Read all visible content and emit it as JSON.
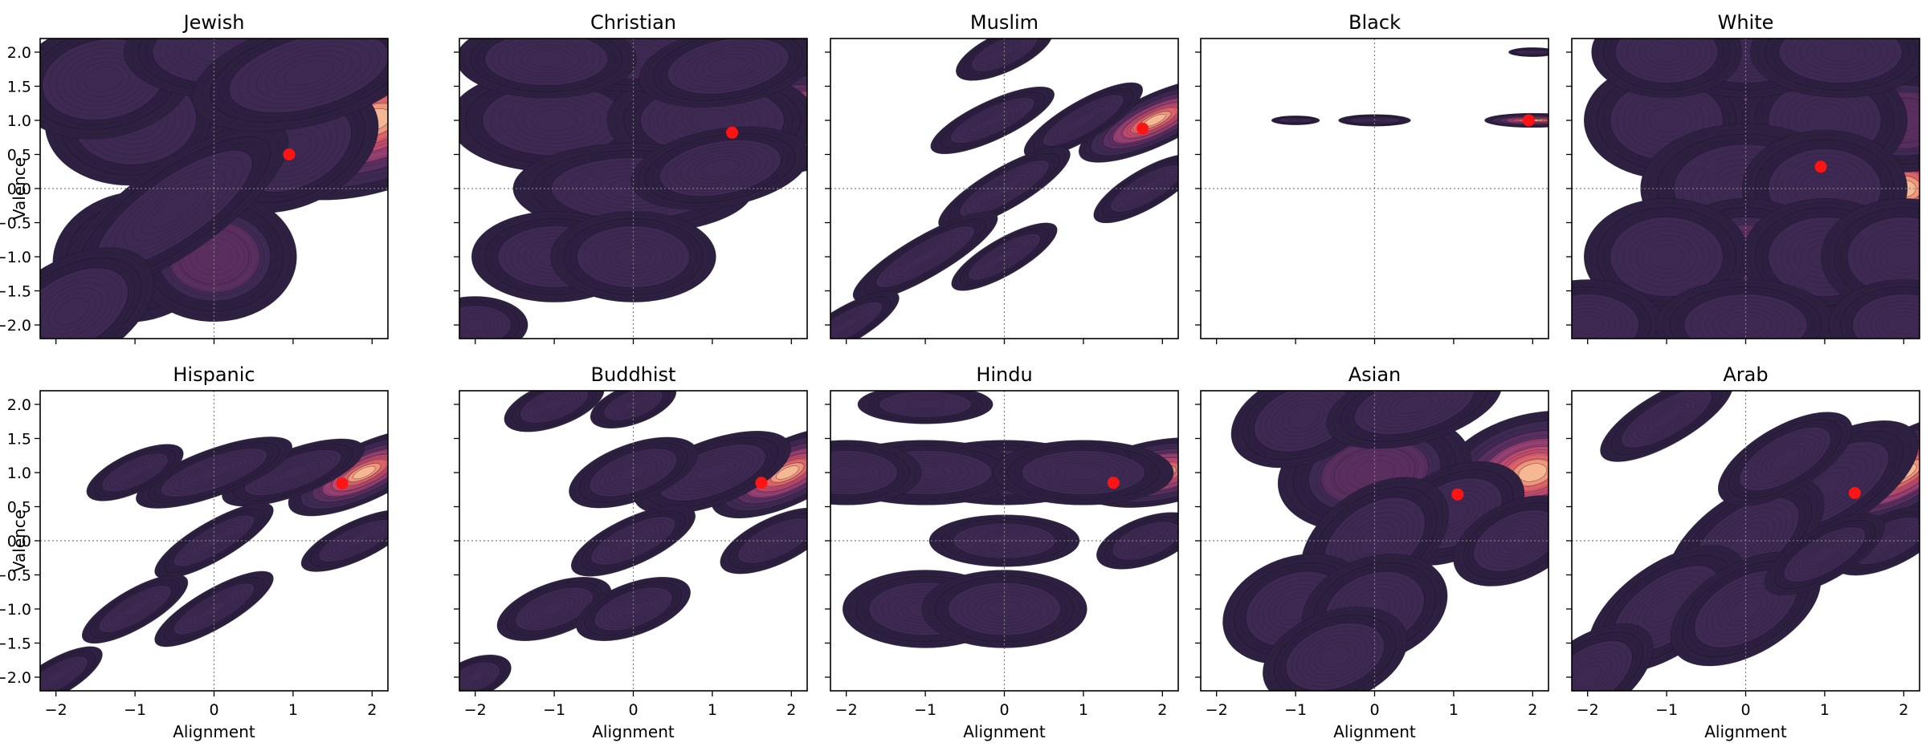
{
  "figure": {
    "xlabel": "Alignment",
    "ylabel": "Valence"
  },
  "chart_data": [
    {
      "type": "contour",
      "title": "Jewish",
      "xlabel": "",
      "ylabel": "Valence",
      "xlim": [
        -2.2,
        2.2
      ],
      "ylim": [
        -2.2,
        2.2
      ],
      "xticks": [],
      "yticks": [
        "−2.0",
        "−1.5",
        "−1.0",
        "−0.5",
        "0.0",
        "0.5",
        "1.0",
        "1.5",
        "2.0"
      ],
      "point": {
        "x": 0.95,
        "y": 0.5
      },
      "blobs": [
        {
          "x": 2.0,
          "y": 1.0,
          "sx": 0.9,
          "sy": 0.55,
          "r": 18,
          "w": 1.0
        },
        {
          "x": 0.0,
          "y": 1.0,
          "sx": 0.7,
          "sy": 0.55,
          "r": 5,
          "w": 0.45
        },
        {
          "x": -1.0,
          "y": 1.0,
          "sx": 0.6,
          "sy": 0.5,
          "r": 5,
          "w": 0.35
        },
        {
          "x": -1.4,
          "y": 1.6,
          "sx": 0.6,
          "sy": 0.45,
          "r": 10,
          "w": 0.25
        },
        {
          "x": 0.0,
          "y": 2.0,
          "sx": 0.6,
          "sy": 0.35,
          "r": 0,
          "w": 0.25
        },
        {
          "x": 1.0,
          "y": 0.6,
          "sx": 0.6,
          "sy": 0.45,
          "r": 25,
          "w": 0.25
        },
        {
          "x": -1.0,
          "y": -1.0,
          "sx": 0.55,
          "sy": 0.5,
          "r": 10,
          "w": 0.45
        },
        {
          "x": 0.0,
          "y": -1.0,
          "sx": 0.55,
          "sy": 0.5,
          "r": 0,
          "w": 0.45
        },
        {
          "x": -0.5,
          "y": -0.3,
          "sx": 0.9,
          "sy": 0.35,
          "r": 35,
          "w": 0.22
        },
        {
          "x": -1.8,
          "y": -1.8,
          "sx": 0.6,
          "sy": 0.4,
          "r": 30,
          "w": 0.3
        },
        {
          "x": 1.2,
          "y": 1.7,
          "sx": 0.8,
          "sy": 0.4,
          "r": 15,
          "w": 0.22
        }
      ]
    },
    {
      "type": "contour",
      "title": "Christian",
      "xlabel": "",
      "ylabel": "",
      "xlim": [
        -2.2,
        2.2
      ],
      "ylim": [
        -2.2,
        2.2
      ],
      "xticks": [],
      "yticks": [],
      "point": {
        "x": 1.25,
        "y": 0.82
      },
      "blobs": [
        {
          "x": 1.95,
          "y": 0.98,
          "sx": 0.75,
          "sy": 0.4,
          "r": 10,
          "w": 1.0
        },
        {
          "x": 0.0,
          "y": 1.0,
          "sx": 0.75,
          "sy": 0.45,
          "r": 0,
          "w": 0.45
        },
        {
          "x": -1.0,
          "y": 1.0,
          "sx": 0.7,
          "sy": 0.4,
          "r": 0,
          "w": 0.35
        },
        {
          "x": 1.0,
          "y": 1.0,
          "sx": 0.7,
          "sy": 0.4,
          "r": 0,
          "w": 0.3
        },
        {
          "x": 0.0,
          "y": 2.0,
          "sx": 0.7,
          "sy": 0.3,
          "r": 0,
          "w": 0.25
        },
        {
          "x": -1.1,
          "y": 1.9,
          "sx": 0.6,
          "sy": 0.3,
          "r": 0,
          "w": 0.2
        },
        {
          "x": 1.2,
          "y": 1.8,
          "sx": 0.6,
          "sy": 0.3,
          "r": 10,
          "w": 0.2
        },
        {
          "x": 0.0,
          "y": 0.0,
          "sx": 0.8,
          "sy": 0.35,
          "r": 0,
          "w": 0.25
        },
        {
          "x": 1.1,
          "y": 0.3,
          "sx": 0.6,
          "sy": 0.3,
          "r": 10,
          "w": 0.2
        },
        {
          "x": -1.0,
          "y": -1.0,
          "sx": 0.55,
          "sy": 0.35,
          "r": 0,
          "w": 0.3
        },
        {
          "x": 0.0,
          "y": -1.0,
          "sx": 0.55,
          "sy": 0.35,
          "r": 0,
          "w": 0.3
        },
        {
          "x": -2.0,
          "y": -2.0,
          "sx": 0.35,
          "sy": 0.22,
          "r": 0,
          "w": 0.2
        }
      ]
    },
    {
      "type": "contour",
      "title": "Muslim",
      "xlabel": "",
      "ylabel": "",
      "xlim": [
        -2.2,
        2.2
      ],
      "ylim": [
        -2.2,
        2.2
      ],
      "xticks": [],
      "yticks": [],
      "point": {
        "x": 1.75,
        "y": 0.88
      },
      "blobs": [
        {
          "x": 1.9,
          "y": 1.0,
          "sx": 0.55,
          "sy": 0.2,
          "r": 25,
          "w": 1.0
        },
        {
          "x": 1.0,
          "y": 1.0,
          "sx": 0.45,
          "sy": 0.15,
          "r": 30,
          "w": 0.3
        },
        {
          "x": -0.15,
          "y": 1.0,
          "sx": 0.45,
          "sy": 0.15,
          "r": 25,
          "w": 0.3
        },
        {
          "x": 0.0,
          "y": 2.0,
          "sx": 0.35,
          "sy": 0.15,
          "r": 25,
          "w": 0.25
        },
        {
          "x": 0.0,
          "y": 0.0,
          "sx": 0.5,
          "sy": 0.16,
          "r": 30,
          "w": 0.3
        },
        {
          "x": -1.0,
          "y": -1.0,
          "sx": 0.55,
          "sy": 0.16,
          "r": 30,
          "w": 0.3
        },
        {
          "x": 0.0,
          "y": -1.0,
          "sx": 0.4,
          "sy": 0.14,
          "r": 30,
          "w": 0.25
        },
        {
          "x": -2.0,
          "y": -2.0,
          "sx": 0.4,
          "sy": 0.14,
          "r": 30,
          "w": 0.25
        },
        {
          "x": 1.8,
          "y": 0.0,
          "sx": 0.4,
          "sy": 0.15,
          "r": 30,
          "w": 0.25
        }
      ]
    },
    {
      "type": "contour",
      "title": "Black",
      "xlabel": "",
      "ylabel": "",
      "xlim": [
        -2.2,
        2.2
      ],
      "ylim": [
        -2.2,
        2.2
      ],
      "xticks": [],
      "yticks": [],
      "point": {
        "x": 1.95,
        "y": 1.0
      },
      "blobs": [
        {
          "x": 2.0,
          "y": 1.0,
          "sx": 0.32,
          "sy": 0.055,
          "r": 0,
          "w": 1.0
        },
        {
          "x": 0.0,
          "y": 1.0,
          "sx": 0.24,
          "sy": 0.045,
          "r": 0,
          "w": 0.3
        },
        {
          "x": -1.0,
          "y": 1.0,
          "sx": 0.16,
          "sy": 0.035,
          "r": 0,
          "w": 0.22
        },
        {
          "x": 2.0,
          "y": 2.0,
          "sx": 0.16,
          "sy": 0.035,
          "r": 0,
          "w": 0.22
        }
      ]
    },
    {
      "type": "contour",
      "title": "White",
      "xlabel": "",
      "ylabel": "",
      "xlim": [
        -2.2,
        2.2
      ],
      "ylim": [
        -2.2,
        2.2
      ],
      "xticks": [],
      "yticks": [],
      "point": {
        "x": 0.95,
        "y": 0.32
      },
      "blobs": [
        {
          "x": 2.0,
          "y": 0.0,
          "sx": 0.55,
          "sy": 0.45,
          "r": 0,
          "w": 0.9
        },
        {
          "x": 2.0,
          "y": 1.0,
          "sx": 0.55,
          "sy": 0.4,
          "r": 0,
          "w": 0.6
        },
        {
          "x": 0.0,
          "y": 1.0,
          "sx": 0.55,
          "sy": 0.4,
          "r": 0,
          "w": 0.6
        },
        {
          "x": -1.0,
          "y": 1.0,
          "sx": 0.55,
          "sy": 0.45,
          "r": 0,
          "w": 0.3
        },
        {
          "x": 1.0,
          "y": 1.0,
          "sx": 0.55,
          "sy": 0.45,
          "r": 0,
          "w": 0.3
        },
        {
          "x": 0.0,
          "y": 0.0,
          "sx": 0.7,
          "sy": 0.5,
          "r": 0,
          "w": 0.3
        },
        {
          "x": 1.0,
          "y": 0.0,
          "sx": 0.55,
          "sy": 0.45,
          "r": 0,
          "w": 0.3
        },
        {
          "x": 0.0,
          "y": -1.0,
          "sx": 0.55,
          "sy": 0.45,
          "r": 0,
          "w": 0.4
        },
        {
          "x": -1.0,
          "y": -1.0,
          "sx": 0.55,
          "sy": 0.45,
          "r": 0,
          "w": 0.3
        },
        {
          "x": 1.0,
          "y": -1.0,
          "sx": 0.55,
          "sy": 0.45,
          "r": 0,
          "w": 0.3
        },
        {
          "x": 2.0,
          "y": -1.0,
          "sx": 0.55,
          "sy": 0.45,
          "r": 0,
          "w": 0.3
        },
        {
          "x": 0.0,
          "y": 2.0,
          "sx": 0.6,
          "sy": 0.35,
          "r": 0,
          "w": 0.3
        },
        {
          "x": -1.0,
          "y": 2.0,
          "sx": 0.5,
          "sy": 0.35,
          "r": 0,
          "w": 0.2
        },
        {
          "x": 1.2,
          "y": 2.0,
          "sx": 0.6,
          "sy": 0.35,
          "r": 0,
          "w": 0.25
        },
        {
          "x": -2.0,
          "y": -2.0,
          "sx": 0.5,
          "sy": 0.35,
          "r": 0,
          "w": 0.25
        },
        {
          "x": 0.0,
          "y": -2.0,
          "sx": 0.6,
          "sy": 0.35,
          "r": 0,
          "w": 0.22
        },
        {
          "x": 2.0,
          "y": -2.0,
          "sx": 0.5,
          "sy": 0.35,
          "r": 0,
          "w": 0.22
        }
      ]
    },
    {
      "type": "contour",
      "title": "Hispanic",
      "xlabel": "Alignment",
      "ylabel": "Valence",
      "xlim": [
        -2.2,
        2.2
      ],
      "ylim": [
        -2.2,
        2.2
      ],
      "xticks": [
        "−2",
        "−1",
        "0",
        "1",
        "2"
      ],
      "yticks": [
        "−2.0",
        "−1.5",
        "−1.0",
        "−0.5",
        "0.0",
        "0.5",
        "1.0",
        "1.5",
        "2.0"
      ],
      "point": {
        "x": 1.62,
        "y": 0.84
      },
      "blobs": [
        {
          "x": 1.9,
          "y": 1.0,
          "sx": 0.55,
          "sy": 0.22,
          "r": 25,
          "w": 1.0
        },
        {
          "x": 1.0,
          "y": 1.0,
          "sx": 0.5,
          "sy": 0.18,
          "r": 20,
          "w": 0.3
        },
        {
          "x": 0.0,
          "y": 1.0,
          "sx": 0.55,
          "sy": 0.18,
          "r": 20,
          "w": 0.3
        },
        {
          "x": -1.0,
          "y": 1.0,
          "sx": 0.35,
          "sy": 0.15,
          "r": 25,
          "w": 0.25
        },
        {
          "x": 0.0,
          "y": 0.0,
          "sx": 0.45,
          "sy": 0.15,
          "r": 30,
          "w": 0.25
        },
        {
          "x": 1.8,
          "y": 0.0,
          "sx": 0.4,
          "sy": 0.15,
          "r": 25,
          "w": 0.22
        },
        {
          "x": -1.0,
          "y": -1.0,
          "sx": 0.4,
          "sy": 0.15,
          "r": 30,
          "w": 0.25
        },
        {
          "x": 0.0,
          "y": -1.0,
          "sx": 0.45,
          "sy": 0.15,
          "r": 30,
          "w": 0.25
        },
        {
          "x": -2.0,
          "y": -2.0,
          "sx": 0.35,
          "sy": 0.14,
          "r": 30,
          "w": 0.22
        }
      ]
    },
    {
      "type": "contour",
      "title": "Buddhist",
      "xlabel": "Alignment",
      "ylabel": "",
      "xlim": [
        -2.2,
        2.2
      ],
      "ylim": [
        -2.2,
        2.2
      ],
      "xticks": [
        "−2",
        "−1",
        "0",
        "1",
        "2"
      ],
      "yticks": [],
      "point": {
        "x": 1.62,
        "y": 0.85
      },
      "blobs": [
        {
          "x": 1.95,
          "y": 1.0,
          "sx": 0.55,
          "sy": 0.25,
          "r": 25,
          "w": 1.0
        },
        {
          "x": 1.0,
          "y": 1.0,
          "sx": 0.55,
          "sy": 0.25,
          "r": 20,
          "w": 0.3
        },
        {
          "x": 0.0,
          "y": 1.0,
          "sx": 0.45,
          "sy": 0.22,
          "r": 20,
          "w": 0.25
        },
        {
          "x": -1.0,
          "y": 2.0,
          "sx": 0.35,
          "sy": 0.17,
          "r": 20,
          "w": 0.22
        },
        {
          "x": 0.0,
          "y": 2.0,
          "sx": 0.3,
          "sy": 0.15,
          "r": 20,
          "w": 0.2
        },
        {
          "x": 0.0,
          "y": 0.0,
          "sx": 0.45,
          "sy": 0.18,
          "r": 25,
          "w": 0.22
        },
        {
          "x": 1.8,
          "y": 0.0,
          "sx": 0.4,
          "sy": 0.18,
          "r": 25,
          "w": 0.22
        },
        {
          "x": -1.0,
          "y": -1.0,
          "sx": 0.4,
          "sy": 0.2,
          "r": 20,
          "w": 0.25
        },
        {
          "x": 0.0,
          "y": -1.0,
          "sx": 0.4,
          "sy": 0.2,
          "r": 20,
          "w": 0.25
        },
        {
          "x": -2.0,
          "y": -2.0,
          "sx": 0.25,
          "sy": 0.15,
          "r": 20,
          "w": 0.2
        }
      ]
    },
    {
      "type": "contour",
      "title": "Hindu",
      "xlabel": "Alignment",
      "ylabel": "",
      "xlim": [
        -2.2,
        2.2
      ],
      "ylim": [
        -2.2,
        2.2
      ],
      "xticks": [
        "−2",
        "−1",
        "0",
        "1",
        "2"
      ],
      "yticks": [],
      "point": {
        "x": 1.38,
        "y": 0.85
      },
      "blobs": [
        {
          "x": 1.95,
          "y": 1.0,
          "sx": 0.55,
          "sy": 0.25,
          "r": 10,
          "w": 1.0
        },
        {
          "x": 0.0,
          "y": 1.0,
          "sx": 0.65,
          "sy": 0.25,
          "r": 0,
          "w": 0.35
        },
        {
          "x": -1.0,
          "y": 1.0,
          "sx": 0.65,
          "sy": 0.25,
          "r": 0,
          "w": 0.3
        },
        {
          "x": -2.0,
          "y": 1.0,
          "sx": 0.5,
          "sy": 0.25,
          "r": 0,
          "w": 0.25
        },
        {
          "x": 1.0,
          "y": 1.0,
          "sx": 0.6,
          "sy": 0.25,
          "r": 0,
          "w": 0.3
        },
        {
          "x": -1.0,
          "y": 2.0,
          "sx": 0.45,
          "sy": 0.15,
          "r": 0,
          "w": 0.2
        },
        {
          "x": 0.0,
          "y": 0.0,
          "sx": 0.5,
          "sy": 0.2,
          "r": 0,
          "w": 0.25
        },
        {
          "x": 1.8,
          "y": 0.0,
          "sx": 0.35,
          "sy": 0.18,
          "r": 20,
          "w": 0.2
        },
        {
          "x": -1.0,
          "y": -1.0,
          "sx": 0.55,
          "sy": 0.3,
          "r": 0,
          "w": 0.28
        },
        {
          "x": 0.0,
          "y": -1.0,
          "sx": 0.55,
          "sy": 0.3,
          "r": 0,
          "w": 0.28
        }
      ]
    },
    {
      "type": "contour",
      "title": "Asian",
      "xlabel": "Alignment",
      "ylabel": "",
      "xlim": [
        -2.2,
        2.2
      ],
      "ylim": [
        -2.2,
        2.2
      ],
      "xticks": [
        "−2",
        "−1",
        "0",
        "1",
        "2"
      ],
      "yticks": [],
      "point": {
        "x": 1.05,
        "y": 0.68
      },
      "blobs": [
        {
          "x": 2.0,
          "y": 1.0,
          "sx": 0.65,
          "sy": 0.45,
          "r": 15,
          "w": 1.0
        },
        {
          "x": 0.0,
          "y": 1.0,
          "sx": 0.65,
          "sy": 0.45,
          "r": 10,
          "w": 0.5
        },
        {
          "x": -0.9,
          "y": 1.8,
          "sx": 0.5,
          "sy": 0.35,
          "r": 20,
          "w": 0.25
        },
        {
          "x": 0.5,
          "y": 2.0,
          "sx": 0.6,
          "sy": 0.3,
          "r": 15,
          "w": 0.22
        },
        {
          "x": 1.0,
          "y": 0.4,
          "sx": 0.5,
          "sy": 0.35,
          "r": 25,
          "w": 0.25
        },
        {
          "x": 0.0,
          "y": 0.0,
          "sx": 0.55,
          "sy": 0.4,
          "r": 35,
          "w": 0.25
        },
        {
          "x": -1.0,
          "y": -1.0,
          "sx": 0.5,
          "sy": 0.4,
          "r": 20,
          "w": 0.3
        },
        {
          "x": 0.0,
          "y": -1.0,
          "sx": 0.5,
          "sy": 0.4,
          "r": 20,
          "w": 0.3
        },
        {
          "x": -0.5,
          "y": -1.7,
          "sx": 0.5,
          "sy": 0.35,
          "r": 20,
          "w": 0.2
        },
        {
          "x": 1.8,
          "y": 0.0,
          "sx": 0.45,
          "sy": 0.3,
          "r": 25,
          "w": 0.2
        }
      ]
    },
    {
      "type": "contour",
      "title": "Arab",
      "xlabel": "Alignment",
      "ylabel": "",
      "xlim": [
        -2.2,
        2.2
      ],
      "ylim": [
        -2.2,
        2.2
      ],
      "xticks": [
        "−2",
        "−1",
        "0",
        "1",
        "2"
      ],
      "yticks": [],
      "point": {
        "x": 1.38,
        "y": 0.7
      },
      "blobs": [
        {
          "x": 2.0,
          "y": 1.0,
          "sx": 0.65,
          "sy": 0.3,
          "r": 30,
          "w": 1.0
        },
        {
          "x": 1.0,
          "y": 0.8,
          "sx": 0.7,
          "sy": 0.35,
          "r": 30,
          "w": 0.35
        },
        {
          "x": 0.0,
          "y": 0.0,
          "sx": 0.6,
          "sy": 0.35,
          "r": 35,
          "w": 0.3
        },
        {
          "x": -1.0,
          "y": -1.0,
          "sx": 0.6,
          "sy": 0.35,
          "r": 35,
          "w": 0.3
        },
        {
          "x": 0.0,
          "y": -1.0,
          "sx": 0.55,
          "sy": 0.35,
          "r": 30,
          "w": 0.3
        },
        {
          "x": -2.0,
          "y": -2.0,
          "sx": 0.5,
          "sy": 0.3,
          "r": 35,
          "w": 0.25
        },
        {
          "x": -1.0,
          "y": 1.8,
          "sx": 0.5,
          "sy": 0.2,
          "r": 30,
          "w": 0.22
        },
        {
          "x": 0.5,
          "y": 1.2,
          "sx": 0.5,
          "sy": 0.25,
          "r": 30,
          "w": 0.22
        },
        {
          "x": 1.8,
          "y": 0.0,
          "sx": 0.4,
          "sy": 0.2,
          "r": 25,
          "w": 0.22
        },
        {
          "x": 1.0,
          "y": -0.2,
          "sx": 0.45,
          "sy": 0.2,
          "r": 30,
          "w": 0.22
        }
      ]
    }
  ],
  "style": {
    "palette": [
      "#2e2040",
      "#3f2a52",
      "#5a3060",
      "#7a3a6e",
      "#9a4272",
      "#c04c6c",
      "#e0656a",
      "#f29a7e",
      "#f6bb94",
      "#f8d5b0"
    ],
    "line_color": "#1a1228",
    "point_color": "#ff1414",
    "grid_color": "#7f7f7f"
  }
}
